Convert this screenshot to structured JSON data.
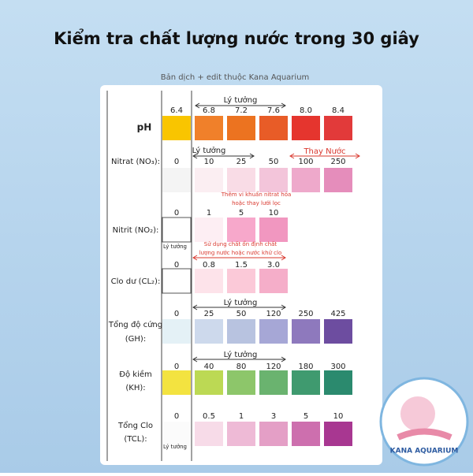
{
  "header": {
    "title": "Kiểm tra chất lượng nước trong 30 giây",
    "subtitle": "Bản dịch + edit thuộc Kana Aquarium"
  },
  "rows": [
    {
      "label": [
        "pH"
      ],
      "values": [
        "6.4",
        "6.8",
        "7.2",
        "7.6",
        "8.0",
        "8.4"
      ],
      "colors": [
        "#f9c500",
        "#f0802a",
        "#ec7320",
        "#e85c27",
        "#e5352e",
        "#e23a3a"
      ]
    },
    {
      "label": [
        "Nitrat (NO₃):"
      ],
      "values": [
        "0",
        "10",
        "25",
        "50",
        "100",
        "250"
      ],
      "colors": [
        "#f4f4f4",
        "#fbeef2",
        "#f9dce6",
        "#f3c5da",
        "#eea9cb",
        "#e58dbb"
      ]
    },
    {
      "label": [
        "Nitrit (NO₂):"
      ],
      "values": [
        "0",
        "1",
        "5",
        "10"
      ],
      "colors": [
        "#ffffff",
        "#fdeef3",
        "#f7a8cb",
        "#f197c0"
      ]
    },
    {
      "label": [
        "Clo dư (CL₂):"
      ],
      "values": [
        "0",
        "0.8",
        "1.5",
        "3.0"
      ],
      "colors": [
        "#ffffff",
        "#fde3ea",
        "#fbc9d8",
        "#f5aec9"
      ]
    },
    {
      "label": [
        "Tổng độ cứng",
        "(GH):"
      ],
      "values": [
        "0",
        "25",
        "50",
        "120",
        "250",
        "425"
      ],
      "colors": [
        "#e4f1f6",
        "#cdd9ec",
        "#b8c3e0",
        "#a6a7d6",
        "#8e79bd",
        "#6d4da0"
      ]
    },
    {
      "label": [
        "Độ kiềm",
        "(KH):"
      ],
      "values": [
        "0",
        "40",
        "80",
        "120",
        "180",
        "300"
      ],
      "colors": [
        "#f3e340",
        "#bcd954",
        "#8dc66a",
        "#6ab36f",
        "#3f9a6f",
        "#2b8a6e"
      ]
    },
    {
      "label": [
        "Tổng Clo",
        "(TCL):"
      ],
      "values": [
        "0",
        "0.5",
        "1",
        "3",
        "5",
        "10"
      ],
      "colors": [
        "#fbfbfb",
        "#f7dbe8",
        "#eebad6",
        "#e49fc6",
        "#cd6fae",
        "#a83791"
      ]
    }
  ],
  "annotations": [
    {
      "text": "Lý tưởng"
    },
    {
      "text": "Lý tưởng"
    },
    {
      "text": "Thay Nước"
    },
    {
      "text": "Thêm vi khuẩn nitrat hóa"
    },
    {
      "text": "hoặc thay lưới lọc"
    },
    {
      "text": "Lý tưởng"
    },
    {
      "text": "Sử dụng chất ổn định chất"
    },
    {
      "text": "lượng nước hoặc nước khử clo"
    },
    {
      "text": "Lý tưởng"
    },
    {
      "text": "Lý tưởng"
    },
    {
      "text": "Lý tưởng"
    }
  ],
  "logo": {
    "text": "KANA AQUARIUM"
  }
}
